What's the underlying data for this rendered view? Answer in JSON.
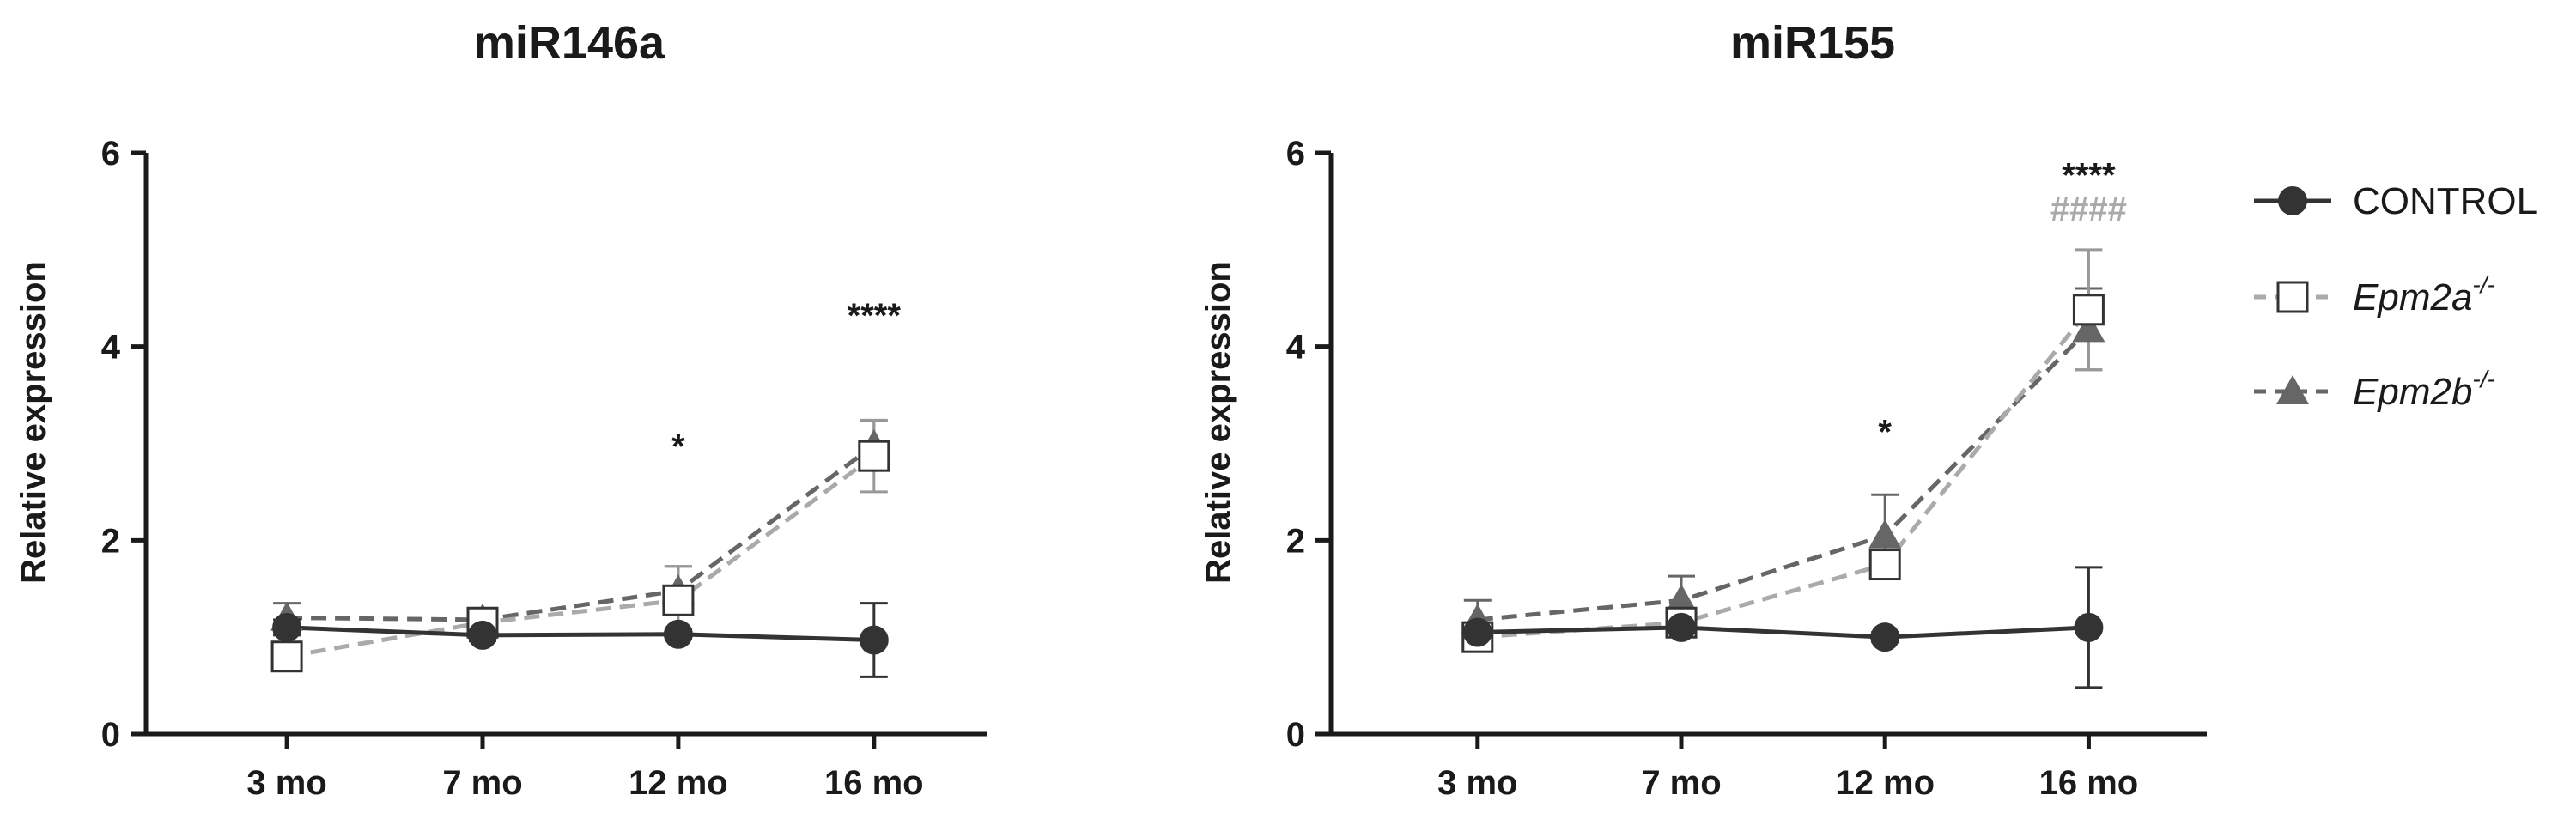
{
  "chart_data": [
    {
      "type": "line",
      "title": "miR146a",
      "xlabel": "",
      "ylabel": "Relative expression",
      "categories": [
        "3 mo",
        "7 mo",
        "12 mo",
        "16 mo"
      ],
      "ylim": [
        0,
        6
      ],
      "yticks": [
        0,
        2,
        4,
        6
      ],
      "series": [
        {
          "key": "control",
          "values": [
            1.1,
            1.02,
            1.03,
            0.97
          ],
          "errors": [
            0.08,
            0.06,
            0.05,
            0.38
          ]
        },
        {
          "key": "epm2a",
          "values": [
            0.8,
            1.15,
            1.38,
            2.87
          ],
          "errors": [
            0.05,
            0.08,
            0.35,
            0.37
          ]
        },
        {
          "key": "epm2b",
          "values": [
            1.2,
            1.18,
            1.48,
            2.98
          ],
          "errors": [
            0.15,
            0.08,
            0.25,
            0.25
          ]
        }
      ],
      "annotations": [
        {
          "category": "12 mo",
          "text": "*",
          "y": 2.85,
          "color": "#1a1a1a"
        },
        {
          "category": "16 mo",
          "text": "****",
          "y": 4.2,
          "color": "#1a1a1a"
        }
      ]
    },
    {
      "type": "line",
      "title": "miR155",
      "xlabel": "",
      "ylabel": "Relative expression",
      "categories": [
        "3 mo",
        "7 mo",
        "12 mo",
        "16 mo"
      ],
      "ylim": [
        0,
        6
      ],
      "yticks": [
        0,
        2,
        4,
        6
      ],
      "series": [
        {
          "key": "control",
          "values": [
            1.05,
            1.1,
            1.0,
            1.1
          ],
          "errors": [
            0.1,
            0.06,
            0.05,
            0.62
          ]
        },
        {
          "key": "epm2a",
          "values": [
            1.0,
            1.15,
            1.75,
            4.38
          ],
          "errors": [
            0.05,
            0.1,
            0.1,
            0.62
          ]
        },
        {
          "key": "epm2b",
          "values": [
            1.18,
            1.38,
            2.05,
            4.18
          ],
          "errors": [
            0.2,
            0.25,
            0.42,
            0.42
          ]
        }
      ],
      "annotations": [
        {
          "category": "12 mo",
          "text": "*",
          "y": 3.0,
          "color": "#1a1a1a"
        },
        {
          "category": "16 mo",
          "text": "****",
          "y": 5.65,
          "color": "#1a1a1a"
        },
        {
          "category": "16 mo",
          "text": "####",
          "y": 5.3,
          "color": "#aaaaaa"
        }
      ]
    }
  ],
  "legend": {
    "placement": "right",
    "items": [
      {
        "key": "control",
        "label": "CONTROL",
        "sup": "",
        "marker": "filled-circle",
        "line": "solid",
        "color": "#333333"
      },
      {
        "key": "epm2a",
        "label": "Epm2a",
        "sup": "-/-",
        "marker": "open-square",
        "line": "dashed",
        "color": "#aaaaaa"
      },
      {
        "key": "epm2b",
        "label": "Epm2b",
        "sup": "-/-",
        "marker": "filled-triangle",
        "line": "dashed",
        "color": "#666666"
      }
    ]
  }
}
